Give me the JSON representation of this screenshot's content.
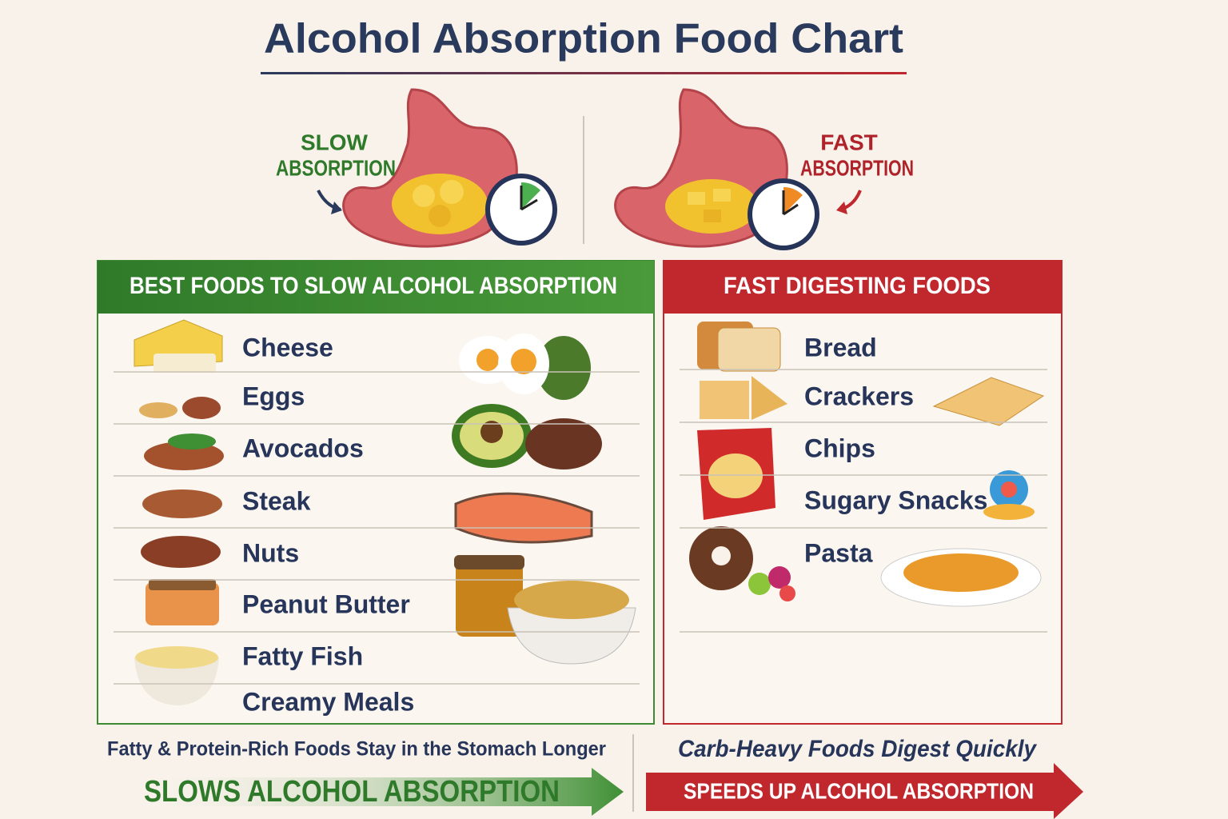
{
  "title": "Alcohol Absorption Food Chart",
  "stomachs": [
    {
      "label_line1": "SLOW",
      "label_line2": "ABSORPTION"
    },
    {
      "label_line1": "FAST",
      "label_line2": "ABSORPTION"
    }
  ],
  "panels": [
    {
      "header": "BEST FOODS TO SLOW ALCOHOL ABSORPTION",
      "items": [
        "Cheese",
        "Eggs",
        "Avocados",
        "Steak",
        "Nuts",
        "Peanut Butter",
        "Fatty Fish",
        "Creamy Meals"
      ]
    },
    {
      "header": "FAST DIGESTING FOODS",
      "items": [
        "Bread",
        "Crackers",
        "Chips",
        "Sugary Snacks",
        "Pasta"
      ]
    }
  ],
  "footer": {
    "left_caption": "Fatty & Protein-Rich Foods Stay in the Stomach Longer",
    "left_banner": "SLOWS ALCOHOL ABSORPTION",
    "right_caption": "Carb-Heavy Foods Digest Quickly",
    "right_banner": "SPEEDS UP ALCOHOL ABSORPTION"
  }
}
